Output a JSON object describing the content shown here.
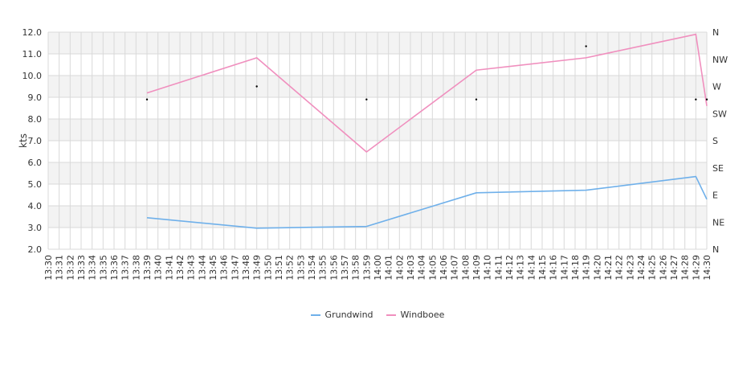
{
  "chart_data": {
    "type": "line",
    "ylabel": "kts",
    "ylim": [
      2.0,
      12.0
    ],
    "y_ticks": [
      "2.0",
      "3.0",
      "4.0",
      "5.0",
      "6.0",
      "7.0",
      "8.0",
      "9.0",
      "10.0",
      "11.0",
      "12.0"
    ],
    "right_axis_labels": [
      "N",
      "NE",
      "E",
      "SE",
      "S",
      "SW",
      "W",
      "NW",
      "N"
    ],
    "x_labels": [
      "13:30",
      "13:31",
      "13:32",
      "13:33",
      "13:34",
      "13:35",
      "13:36",
      "13:37",
      "13:38",
      "13:39",
      "13:40",
      "13:41",
      "13:42",
      "13:43",
      "13:44",
      "13:45",
      "13:46",
      "13:47",
      "13:48",
      "13:49",
      "13:50",
      "13:51",
      "13:52",
      "13:53",
      "13:54",
      "13:55",
      "13:56",
      "13:57",
      "13:58",
      "13:59",
      "14:00",
      "14:01",
      "14:02",
      "14:03",
      "14:04",
      "14:05",
      "14:06",
      "14:07",
      "14:08",
      "14:09",
      "14:10",
      "14:11",
      "14:12",
      "14:13",
      "14:14",
      "14:15",
      "14:16",
      "14:17",
      "14:18",
      "14:19",
      "14:20",
      "14:21",
      "14:22",
      "14:23",
      "14:24",
      "14:25",
      "14:26",
      "14:27",
      "14:28",
      "14:29",
      "14:30"
    ],
    "series": [
      {
        "name": "Grundwind",
        "color": "#6fb0ea",
        "points": [
          [
            9,
            3.45
          ],
          [
            19,
            2.97
          ],
          [
            29,
            3.05
          ],
          [
            39,
            4.6
          ],
          [
            49,
            4.72
          ],
          [
            59,
            5.35
          ],
          [
            60,
            4.3
          ]
        ]
      },
      {
        "name": "Windboee",
        "color": "#f08fbe",
        "points": [
          [
            9,
            9.2
          ],
          [
            19,
            10.82
          ],
          [
            29,
            6.48
          ],
          [
            39,
            10.25
          ],
          [
            49,
            10.82
          ],
          [
            59,
            11.9
          ],
          [
            60,
            8.6
          ]
        ]
      }
    ],
    "direction_points": [
      [
        9,
        8.9
      ],
      [
        19,
        9.5
      ],
      [
        29,
        8.9
      ],
      [
        39,
        8.9
      ],
      [
        49,
        11.35
      ],
      [
        59,
        8.9
      ],
      [
        60,
        8.9
      ]
    ],
    "grid": true,
    "legend_position": "bottom"
  }
}
